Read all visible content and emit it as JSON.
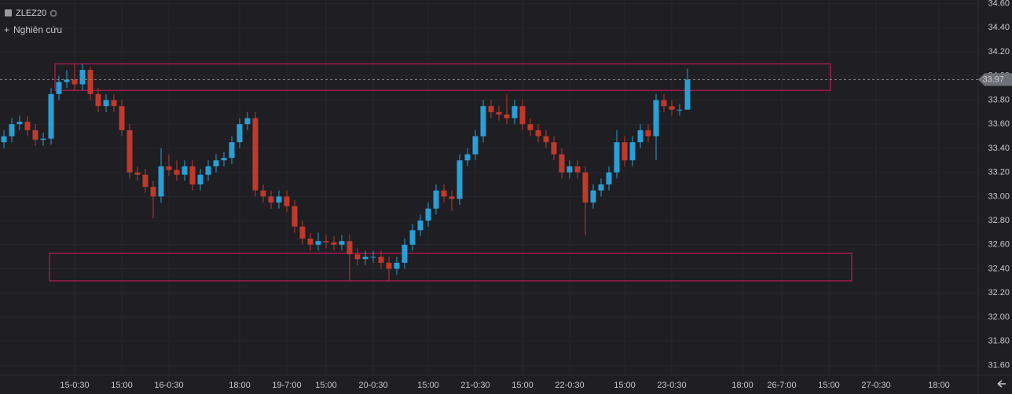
{
  "chart_data": {
    "type": "candlestick",
    "symbol": "ZLEZ20",
    "study_label": "Nghiên cứu",
    "up_color": "#2a9fd6",
    "down_color": "#c0392b",
    "zone_color": "#c2185b",
    "grid": true,
    "ylim": [
      31.57,
      34.63
    ],
    "yticks": [
      {
        "value": 31.6,
        "label": "31.60"
      },
      {
        "value": 31.8,
        "label": "31.80"
      },
      {
        "value": 32.0,
        "label": "32.00"
      },
      {
        "value": 32.2,
        "label": "32.20"
      },
      {
        "value": 32.4,
        "label": "32.40"
      },
      {
        "value": 32.6,
        "label": "32.60"
      },
      {
        "value": 32.8,
        "label": "32.80"
      },
      {
        "value": 33.0,
        "label": "33.00"
      },
      {
        "value": 33.2,
        "label": "33.20"
      },
      {
        "value": 33.4,
        "label": "33.40"
      },
      {
        "value": 33.6,
        "label": "33.60"
      },
      {
        "value": 33.8,
        "label": "33.80"
      },
      {
        "value": 34.0,
        "label": "34.00"
      },
      {
        "value": 34.2,
        "label": "34.20"
      },
      {
        "value": 34.4,
        "label": "34.40"
      },
      {
        "value": 34.6,
        "label": "34.60"
      }
    ],
    "last_price": 33.97,
    "zones": [
      {
        "top": 34.1,
        "bottom": 33.88
      },
      {
        "top": 32.53,
        "bottom": 32.3
      }
    ],
    "categories": [
      null,
      null,
      null,
      null,
      null,
      null,
      null,
      null,
      null,
      "15-0:30",
      null,
      null,
      null,
      null,
      null,
      "15:00",
      null,
      null,
      null,
      null,
      null,
      "16-0:30",
      null,
      null,
      null,
      null,
      null,
      null,
      null,
      null,
      "18:00",
      null,
      null,
      null,
      null,
      null,
      "19-7:00",
      null,
      null,
      null,
      null,
      "15:00",
      null,
      null,
      null,
      null,
      null,
      "20-0:30",
      null,
      null,
      null,
      null,
      null,
      null,
      "15:00",
      null,
      null,
      null,
      null,
      null,
      "21-0:30",
      null,
      null,
      null,
      null,
      null,
      "15:00",
      null,
      null,
      null,
      null,
      null,
      "22-0:30",
      null,
      null,
      null,
      null,
      null,
      null,
      "15:00",
      null,
      null,
      null,
      null,
      null,
      "23-0:30",
      null,
      null,
      null,
      null,
      null,
      null,
      null,
      null,
      "18:00",
      null,
      null,
      null,
      null,
      "26-7:00",
      null,
      null,
      null,
      null,
      null,
      "15:00",
      null,
      null,
      null,
      null,
      null,
      "27-0:30",
      null,
      null,
      null,
      null,
      null,
      null,
      null,
      "18:00",
      null,
      null,
      null,
      null
    ],
    "open": [
      33.45,
      33.5,
      33.6,
      33.62,
      33.55,
      33.47,
      33.48,
      33.85,
      33.95,
      33.97,
      33.93,
      34.05,
      33.85,
      33.75,
      33.8,
      33.75,
      33.55,
      33.2,
      33.18,
      33.08,
      33.0,
      33.25,
      33.22,
      33.18,
      33.25,
      33.1,
      33.18,
      33.25,
      33.3,
      33.32,
      33.45,
      33.6,
      33.65,
      33.05,
      33.0,
      32.95,
      33.0,
      32.92,
      32.75,
      32.65,
      32.6,
      32.63,
      32.62,
      32.6,
      32.63,
      32.52,
      32.48,
      32.5,
      32.5,
      32.45,
      32.4,
      32.45,
      32.6,
      32.72,
      32.8,
      32.9,
      33.05,
      33.0,
      32.98,
      33.3,
      33.35,
      33.5,
      33.75,
      33.7,
      33.68,
      33.65,
      33.75,
      33.6,
      33.55,
      33.5,
      33.45,
      33.35,
      33.2,
      33.25,
      33.2,
      32.95,
      33.05,
      33.1,
      33.2,
      33.45,
      33.3,
      33.45,
      33.55,
      33.5,
      33.8,
      33.75,
      33.72,
      33.72,
      null,
      null,
      null,
      null,
      null,
      null,
      null,
      null,
      null,
      null,
      null,
      null,
      null,
      null,
      null,
      null,
      null,
      null,
      null,
      null,
      null,
      null,
      null,
      null,
      null,
      null,
      null,
      null,
      null,
      null,
      null,
      null,
      null,
      null,
      null,
      null
    ],
    "high": [
      33.55,
      33.65,
      33.67,
      33.67,
      33.6,
      33.53,
      33.9,
      34.0,
      34.05,
      34.1,
      34.1,
      34.08,
      33.9,
      33.85,
      33.85,
      33.8,
      33.6,
      33.25,
      33.23,
      33.13,
      33.4,
      33.35,
      33.3,
      33.3,
      33.3,
      33.23,
      33.3,
      33.35,
      33.37,
      33.5,
      33.65,
      33.7,
      33.7,
      33.1,
      33.05,
      33.05,
      33.05,
      32.97,
      32.8,
      32.7,
      32.7,
      32.68,
      32.67,
      32.68,
      32.68,
      32.57,
      32.55,
      32.55,
      32.55,
      32.5,
      32.5,
      32.65,
      32.77,
      32.85,
      32.95,
      33.1,
      33.1,
      33.05,
      33.35,
      33.4,
      33.55,
      33.8,
      33.8,
      33.75,
      33.85,
      33.8,
      33.8,
      33.65,
      33.6,
      33.55,
      33.5,
      33.4,
      33.3,
      33.3,
      33.25,
      33.1,
      33.15,
      33.25,
      33.55,
      33.5,
      33.5,
      33.6,
      33.6,
      33.85,
      33.85,
      33.8,
      33.77,
      34.06,
      null,
      null,
      null,
      null,
      null,
      null,
      null,
      null,
      null,
      null,
      null,
      null,
      null,
      null,
      null,
      null,
      null,
      null,
      null,
      null,
      null,
      null,
      null,
      null,
      null,
      null,
      null,
      null,
      null,
      null,
      null,
      null,
      null,
      null,
      null,
      null
    ],
    "low": [
      33.4,
      33.45,
      33.55,
      33.5,
      33.42,
      33.42,
      33.43,
      33.8,
      33.9,
      33.88,
      33.88,
      33.8,
      33.7,
      33.7,
      33.7,
      33.5,
      33.15,
      33.13,
      33.03,
      32.82,
      32.95,
      33.17,
      33.13,
      33.13,
      33.05,
      33.05,
      33.13,
      33.2,
      33.25,
      33.27,
      33.4,
      33.55,
      33.0,
      32.95,
      32.9,
      32.9,
      32.87,
      32.7,
      32.6,
      32.55,
      32.55,
      32.57,
      32.55,
      32.55,
      32.3,
      32.43,
      32.43,
      32.45,
      32.4,
      32.3,
      32.35,
      32.4,
      32.55,
      32.67,
      32.75,
      32.85,
      32.95,
      32.88,
      32.93,
      33.25,
      33.3,
      33.45,
      33.65,
      33.63,
      33.6,
      33.6,
      33.55,
      33.5,
      33.45,
      33.4,
      33.3,
      33.15,
      33.15,
      33.15,
      32.68,
      32.9,
      33.0,
      33.05,
      33.15,
      33.25,
      33.25,
      33.4,
      33.45,
      33.3,
      33.7,
      33.67,
      33.67,
      33.75,
      null,
      null,
      null,
      null,
      null,
      null,
      null,
      null,
      null,
      null,
      null,
      null,
      null,
      null,
      null,
      null,
      null,
      null,
      null,
      null,
      null,
      null,
      null,
      null,
      null,
      null,
      null,
      null,
      null,
      null,
      null,
      null,
      null,
      null,
      null,
      null
    ],
    "close": [
      33.5,
      33.6,
      33.62,
      33.55,
      33.47,
      33.48,
      33.85,
      33.95,
      33.97,
      33.93,
      34.05,
      33.85,
      33.75,
      33.8,
      33.75,
      33.55,
      33.2,
      33.18,
      33.08,
      33.0,
      33.25,
      33.22,
      33.18,
      33.25,
      33.1,
      33.18,
      33.25,
      33.3,
      33.32,
      33.45,
      33.6,
      33.65,
      33.05,
      33.0,
      32.95,
      33.0,
      32.92,
      32.75,
      32.65,
      32.6,
      32.63,
      32.62,
      32.6,
      32.63,
      32.52,
      32.48,
      32.5,
      32.5,
      32.45,
      32.4,
      32.45,
      32.6,
      32.72,
      32.8,
      32.9,
      33.05,
      33.0,
      32.98,
      33.3,
      33.35,
      33.5,
      33.75,
      33.7,
      33.68,
      33.65,
      33.75,
      33.6,
      33.55,
      33.5,
      33.45,
      33.35,
      33.2,
      33.25,
      33.2,
      32.95,
      33.05,
      33.1,
      33.2,
      33.45,
      33.3,
      33.45,
      33.55,
      33.5,
      33.8,
      33.75,
      33.72,
      33.72,
      33.97,
      null,
      null,
      null,
      null,
      null,
      null,
      null,
      null,
      null,
      null,
      null,
      null,
      null,
      null,
      null,
      null,
      null,
      null,
      null,
      null,
      null,
      null,
      null,
      null,
      null,
      null,
      null,
      null,
      null,
      null,
      null,
      null,
      null,
      null,
      null,
      null
    ]
  }
}
